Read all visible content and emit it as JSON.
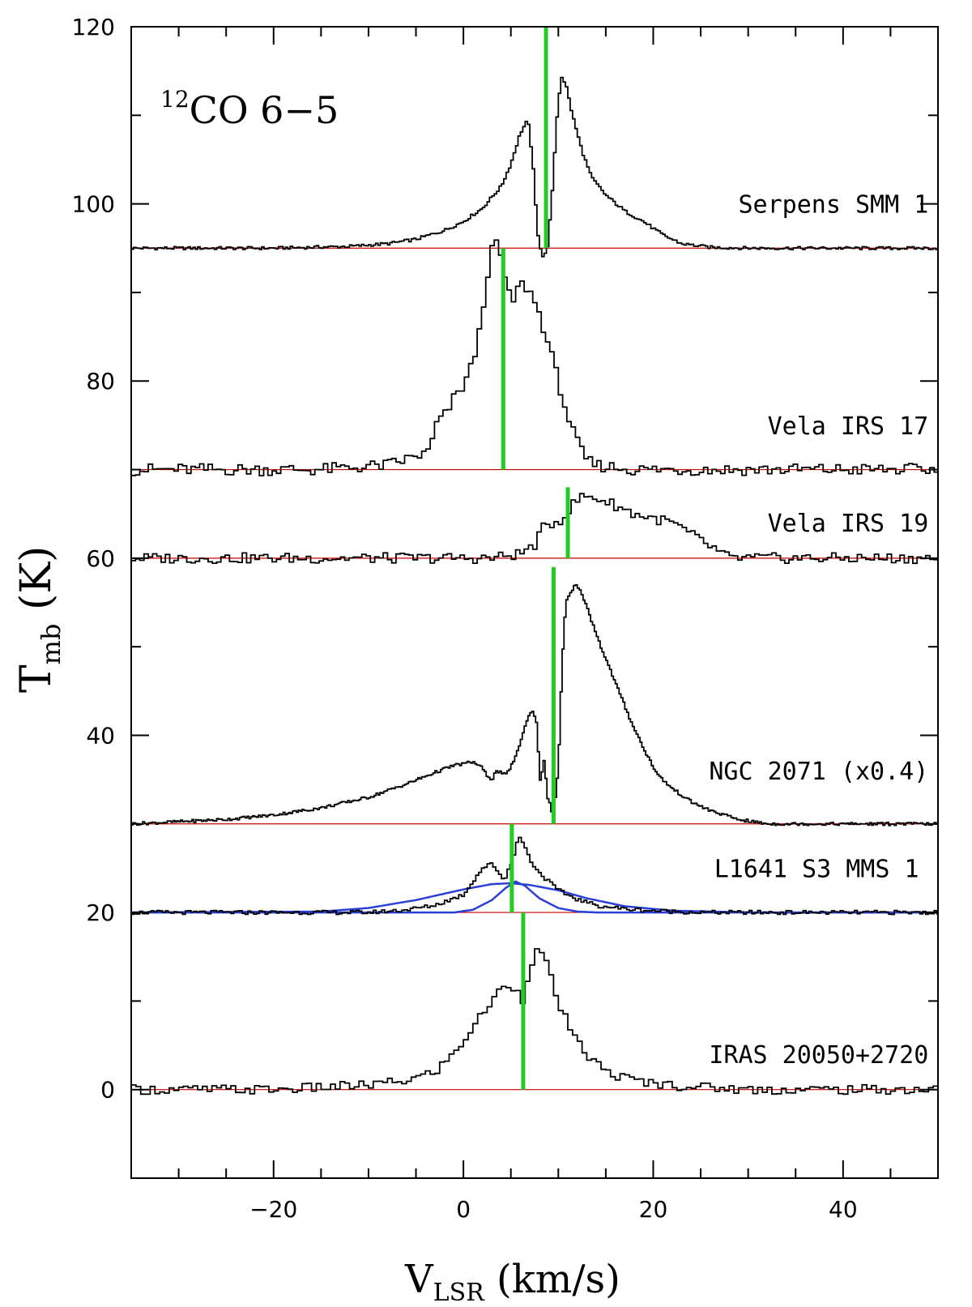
{
  "chart_data": {
    "type": "line",
    "title_sup": "12",
    "title_main": "CO 6−5",
    "xlabel_main": "V",
    "xlabel_sub": "LSR",
    "xlabel_unit": " (km/s)",
    "ylabel_main": "T",
    "ylabel_sub": "mb",
    "ylabel_unit": " (K)",
    "xlim": [
      -35,
      50
    ],
    "ylim": [
      -10,
      120
    ],
    "xticks": [
      -20,
      0,
      20,
      40
    ],
    "xtick_labels": [
      "−20",
      "0",
      "20",
      "40"
    ],
    "yticks": [
      0,
      20,
      40,
      60,
      80,
      100,
      120
    ],
    "ytick_labels": [
      "0",
      "20",
      "40",
      "60",
      "80",
      "100",
      "120"
    ],
    "colors": {
      "spectrum": "#000000",
      "baseline": "#cc0000",
      "vlsr_marker": "#22cc22",
      "fit": "#2a3fd6"
    },
    "series": [
      {
        "name": "Serpens SMM 1",
        "offset": 95,
        "label_x": 49,
        "label_y": 99,
        "marker": {
          "x": 8.7,
          "y_bottom": 95,
          "y_top": 120
        },
        "points": [
          [
            -35,
            0
          ],
          [
            -20,
            0
          ],
          [
            -12,
            0.2
          ],
          [
            -8,
            0.5
          ],
          [
            -5,
            1
          ],
          [
            -2,
            2
          ],
          [
            0,
            3
          ],
          [
            2,
            4.5
          ],
          [
            4,
            7
          ],
          [
            5,
            9.5
          ],
          [
            6,
            13
          ],
          [
            6.8,
            14.5
          ],
          [
            7.3,
            10
          ],
          [
            7.8,
            2
          ],
          [
            8.3,
            -1
          ],
          [
            8.8,
            -0.5
          ],
          [
            9.3,
            5
          ],
          [
            9.8,
            14
          ],
          [
            10.3,
            19.5
          ],
          [
            10.8,
            18.5
          ],
          [
            11.5,
            15
          ],
          [
            12.5,
            11
          ],
          [
            13.5,
            8
          ],
          [
            15,
            6
          ],
          [
            17,
            4.2
          ],
          [
            19,
            3
          ],
          [
            21,
            1.5
          ],
          [
            23,
            0.5
          ],
          [
            26,
            0.1
          ],
          [
            30,
            0
          ],
          [
            50,
            0
          ]
        ],
        "fit_curves": []
      },
      {
        "name": "Vela IRS 17",
        "offset": 70,
        "label_x": 49,
        "label_y": 74,
        "marker": {
          "x": 4.2,
          "y_bottom": 70,
          "y_top": 95
        },
        "points": [
          [
            -35,
            0
          ],
          [
            -15,
            0
          ],
          [
            -8,
            0.5
          ],
          [
            -5,
            1.5
          ],
          [
            -3.5,
            2
          ],
          [
            -3,
            5
          ],
          [
            -2,
            6
          ],
          [
            -1,
            8
          ],
          [
            0,
            9.5
          ],
          [
            1,
            12
          ],
          [
            1.8,
            16
          ],
          [
            2.5,
            22
          ],
          [
            3.3,
            26
          ],
          [
            4,
            24
          ],
          [
            4.6,
            20
          ],
          [
            5.2,
            19
          ],
          [
            6,
            21
          ],
          [
            6.8,
            20.5
          ],
          [
            7.5,
            19
          ],
          [
            8.2,
            17
          ],
          [
            9,
            14
          ],
          [
            10,
            10
          ],
          [
            11,
            6
          ],
          [
            12,
            3
          ],
          [
            13,
            1
          ],
          [
            14,
            0.5
          ],
          [
            18,
            0
          ],
          [
            50,
            0
          ]
        ],
        "fit_curves": []
      },
      {
        "name": "Vela IRS 19",
        "offset": 60,
        "label_x": 49,
        "label_y": 63,
        "marker": {
          "x": 11,
          "y_bottom": 60,
          "y_top": 68
        },
        "points": [
          [
            -35,
            0
          ],
          [
            3,
            0
          ],
          [
            6,
            0.5
          ],
          [
            7.5,
            1.5
          ],
          [
            8.5,
            3.5
          ],
          [
            9.5,
            4
          ],
          [
            10.5,
            4.5
          ],
          [
            11.5,
            6
          ],
          [
            12.5,
            7
          ],
          [
            14,
            6.8
          ],
          [
            16,
            6
          ],
          [
            18,
            5
          ],
          [
            20,
            4.5
          ],
          [
            22,
            4
          ],
          [
            23.5,
            3
          ],
          [
            25,
            2
          ],
          [
            26.5,
            1
          ],
          [
            28,
            0
          ],
          [
            50,
            0
          ]
        ],
        "fit_curves": []
      },
      {
        "name": "NGC 2071 (x0.4)",
        "offset": 30,
        "label_x": 49,
        "label_y": 35,
        "marker": {
          "x": 9.5,
          "y_bottom": 30,
          "y_top": 59
        },
        "points": [
          [
            -35,
            0
          ],
          [
            -25,
            0.5
          ],
          [
            -20,
            1
          ],
          [
            -15,
            1.8
          ],
          [
            -10,
            3
          ],
          [
            -6,
            4.5
          ],
          [
            -3,
            5.8
          ],
          [
            -1,
            6.6
          ],
          [
            1,
            7
          ],
          [
            1.8,
            6.5
          ],
          [
            2.5,
            5.5
          ],
          [
            3,
            5
          ],
          [
            3.5,
            6
          ],
          [
            4.5,
            5.5
          ],
          [
            5.5,
            7.5
          ],
          [
            6.5,
            11
          ],
          [
            7.2,
            13
          ],
          [
            7.7,
            11.5
          ],
          [
            8.1,
            5
          ],
          [
            8.5,
            7
          ],
          [
            8.9,
            3
          ],
          [
            9.3,
            1.5
          ],
          [
            9.6,
            2
          ],
          [
            10,
            6
          ],
          [
            10.4,
            18
          ],
          [
            10.8,
            25
          ],
          [
            11.3,
            26
          ],
          [
            11.8,
            27
          ],
          [
            12.5,
            26
          ],
          [
            13.5,
            23
          ],
          [
            14.5,
            20
          ],
          [
            16,
            16
          ],
          [
            17.5,
            12
          ],
          [
            19,
            8.5
          ],
          [
            20.5,
            5.5
          ],
          [
            22,
            4
          ],
          [
            24,
            2.5
          ],
          [
            26,
            1.5
          ],
          [
            29,
            0.5
          ],
          [
            32,
            0
          ],
          [
            50,
            0
          ]
        ],
        "fit_curves": []
      },
      {
        "name": "L1641 S3 MMS 1",
        "offset": 20,
        "label_x": 48,
        "label_y": 24,
        "marker": {
          "x": 5.1,
          "y_bottom": 20,
          "y_top": 30
        },
        "points": [
          [
            -35,
            0
          ],
          [
            -10,
            0
          ],
          [
            -6,
            0.3
          ],
          [
            -3,
            0.8
          ],
          [
            0,
            2
          ],
          [
            1,
            3.5
          ],
          [
            2,
            5
          ],
          [
            3,
            5.5
          ],
          [
            3.8,
            4.5
          ],
          [
            4.3,
            3.5
          ],
          [
            4.8,
            5
          ],
          [
            5.2,
            6
          ],
          [
            5.8,
            8.5
          ],
          [
            6.3,
            8
          ],
          [
            7,
            6
          ],
          [
            8,
            4.5
          ],
          [
            9,
            3.5
          ],
          [
            10,
            2.5
          ],
          [
            12,
            1.5
          ],
          [
            14,
            0.8
          ],
          [
            17,
            0.4
          ],
          [
            20,
            0.2
          ],
          [
            25,
            0
          ],
          [
            50,
            0
          ]
        ],
        "fit_curves": [
          [
            [
              -35,
              0
            ],
            [
              -15,
              0.1
            ],
            [
              -10,
              0.5
            ],
            [
              -5,
              1.4
            ],
            [
              0,
              2.6
            ],
            [
              3,
              3.2
            ],
            [
              5,
              3.3
            ],
            [
              7,
              3.1
            ],
            [
              10,
              2.5
            ],
            [
              13,
              1.6
            ],
            [
              17,
              0.7
            ],
            [
              22,
              0.2
            ],
            [
              30,
              0
            ],
            [
              50,
              0
            ]
          ],
          [
            [
              -35,
              0
            ],
            [
              -1,
              0
            ],
            [
              1,
              0.3
            ],
            [
              3,
              1.4
            ],
            [
              4.5,
              2.8
            ],
            [
              5.5,
              3.5
            ],
            [
              6.5,
              3
            ],
            [
              8,
              1.6
            ],
            [
              10,
              0.5
            ],
            [
              12,
              0.1
            ],
            [
              14,
              0
            ],
            [
              50,
              0
            ]
          ]
        ]
      },
      {
        "name": "IRAS 20050+2720",
        "offset": 0,
        "label_x": 49,
        "label_y": 3,
        "marker": {
          "x": 6.3,
          "y_bottom": 0,
          "y_top": 20
        },
        "points": [
          [
            -35,
            0
          ],
          [
            -20,
            0
          ],
          [
            -10,
            0.5
          ],
          [
            -6,
            1
          ],
          [
            -3,
            2
          ],
          [
            -1,
            4
          ],
          [
            1,
            7
          ],
          [
            3,
            10
          ],
          [
            4.5,
            12
          ],
          [
            5.5,
            11.5
          ],
          [
            6.2,
            10
          ],
          [
            7,
            14
          ],
          [
            8,
            16
          ],
          [
            8.8,
            14
          ],
          [
            10,
            10
          ],
          [
            11.5,
            6
          ],
          [
            13,
            4
          ],
          [
            15,
            2
          ],
          [
            18,
            1
          ],
          [
            22,
            0.5
          ],
          [
            30,
            0
          ],
          [
            50,
            0
          ]
        ],
        "fit_curves": []
      }
    ]
  }
}
